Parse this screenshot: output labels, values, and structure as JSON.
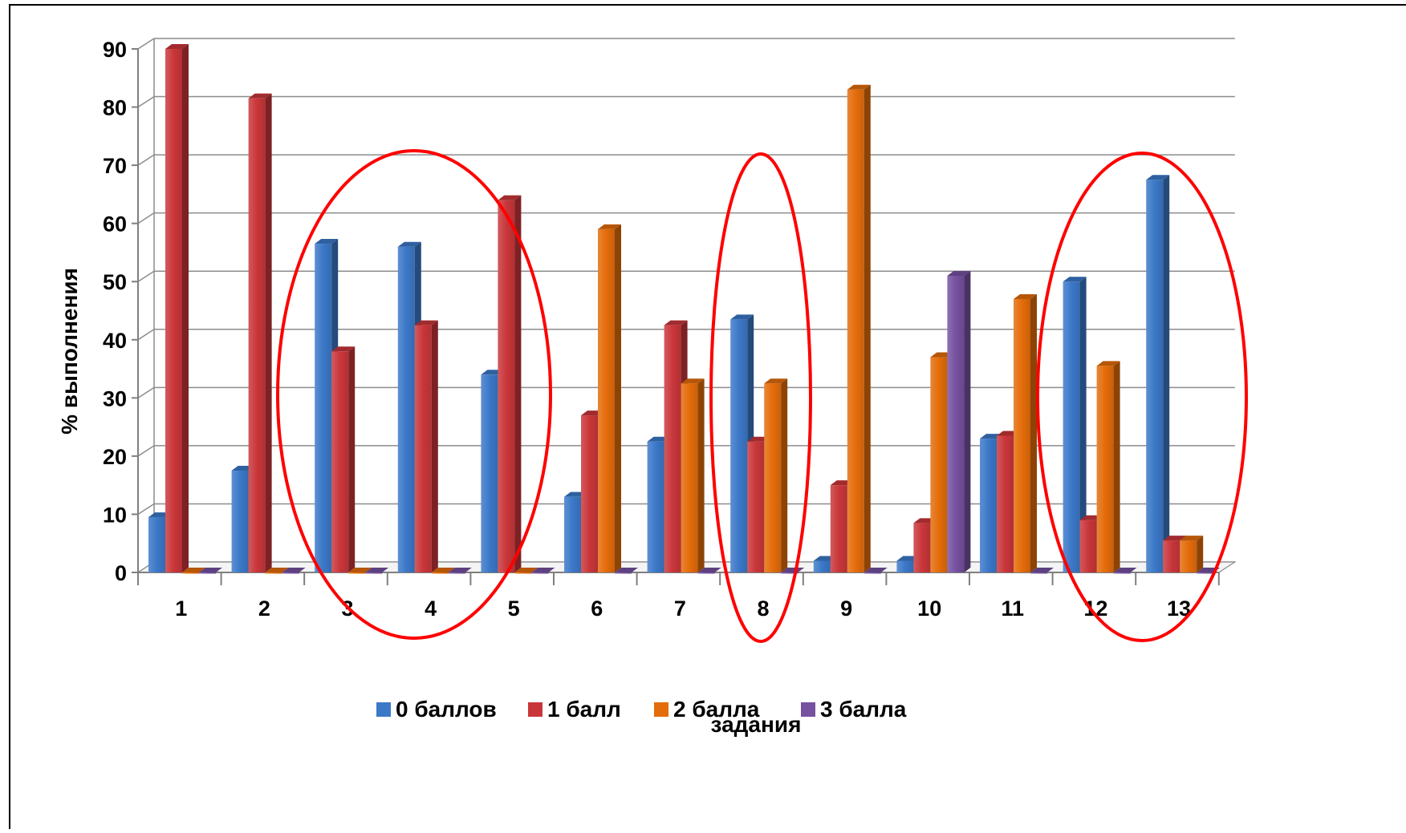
{
  "chart_data": {
    "type": "bar",
    "style": "3d-clustered-column",
    "xlabel": "задания",
    "ylabel": "% выполнения",
    "ylim": [
      0,
      90
    ],
    "yticks": [
      "0",
      "10",
      "20",
      "30",
      "40",
      "50",
      "60",
      "70",
      "80",
      "90"
    ],
    "grid": true,
    "legend_position": "bottom",
    "categories": [
      "1",
      "2",
      "3",
      "4",
      "5",
      "6",
      "7",
      "8",
      "9",
      "10",
      "11",
      "12",
      "13"
    ],
    "series": [
      {
        "name": "0 баллов",
        "color": "#3b78c8",
        "values": [
          9.5,
          17.5,
          56.5,
          56,
          34,
          13,
          22.5,
          43.5,
          2,
          2,
          23,
          50,
          67.5
        ]
      },
      {
        "name": "1 балл",
        "color": "#c9363a",
        "values": [
          90,
          81.5,
          38,
          42.5,
          64,
          27,
          42.5,
          22.5,
          15,
          8.5,
          23.5,
          9,
          5.5
        ]
      },
      {
        "name": "2 балла",
        "color": "#e46c0a",
        "values": [
          0,
          0,
          0,
          0,
          0,
          59,
          32.5,
          32.5,
          83,
          37,
          47,
          35.5,
          5.5
        ]
      },
      {
        "name": "3 балла",
        "color": "#7651a0",
        "values": [
          0,
          0,
          0,
          0,
          0,
          0,
          0,
          0,
          0,
          51,
          0,
          0,
          0
        ]
      }
    ],
    "annotations": {
      "highlight_ellipses": {
        "color": "#ff0000",
        "marks_categories": [
          [
            "3",
            "4",
            "5"
          ],
          [
            "8"
          ],
          [
            "12",
            "13"
          ]
        ]
      }
    }
  }
}
